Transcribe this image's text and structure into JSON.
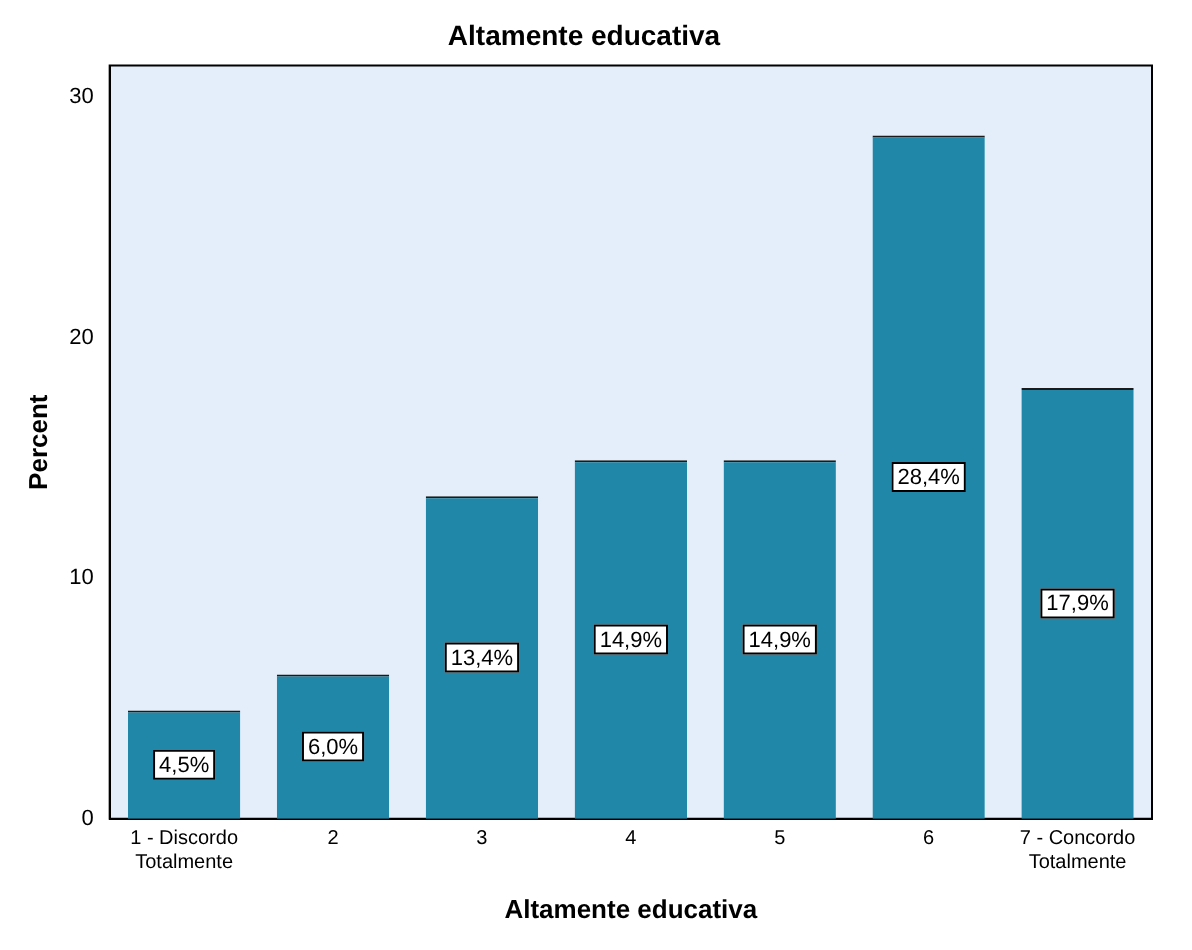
{
  "chart_data": {
    "type": "bar",
    "title": "Altamente educativa",
    "xlabel": "Altamente educativa",
    "ylabel": "Percent",
    "categories": [
      "1 - Discordo Totalmente",
      "2",
      "3",
      "4",
      "5",
      "6",
      "7 - Concordo Totalmente"
    ],
    "values": [
      4.5,
      6.0,
      13.4,
      14.9,
      14.9,
      28.4,
      17.9
    ],
    "value_labels": [
      "4,5%",
      "6,0%",
      "13,4%",
      "14,9%",
      "14,9%",
      "28,4%",
      "17,9%"
    ],
    "color": "#2187a8",
    "ylim": [
      0,
      31.3
    ],
    "yticks": [
      0,
      10,
      20,
      30
    ],
    "grid": false,
    "legend": false
  }
}
